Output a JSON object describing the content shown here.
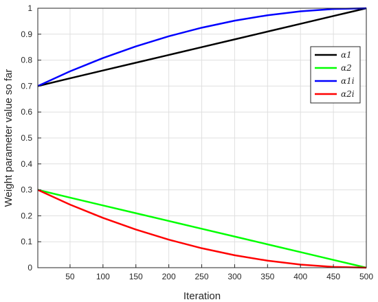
{
  "chart_data": {
    "type": "line",
    "xlabel": "Iteration",
    "ylabel": "Weight parameter value so far",
    "xlim": [
      1,
      500
    ],
    "ylim": [
      0,
      1
    ],
    "x_ticks": [
      50,
      100,
      150,
      200,
      250,
      300,
      350,
      400,
      450,
      500
    ],
    "y_ticks": [
      0,
      0.1,
      0.2,
      0.3,
      0.4,
      0.5,
      0.6,
      0.7,
      0.8,
      0.9,
      1
    ],
    "grid": true,
    "legend_position": "top-right",
    "series": [
      {
        "name": "α1",
        "color": "#000000",
        "x": [
          1,
          50,
          100,
          150,
          200,
          250,
          300,
          350,
          400,
          450,
          500
        ],
        "y": [
          0.7,
          0.73,
          0.76,
          0.79,
          0.82,
          0.85,
          0.88,
          0.91,
          0.94,
          0.97,
          1.0
        ]
      },
      {
        "name": "α2",
        "color": "#00ff00",
        "x": [
          1,
          50,
          100,
          150,
          200,
          250,
          300,
          350,
          400,
          450,
          500
        ],
        "y": [
          0.3,
          0.27,
          0.24,
          0.21,
          0.18,
          0.15,
          0.12,
          0.09,
          0.06,
          0.03,
          0.0
        ]
      },
      {
        "name": "α1i",
        "color": "#0000ff",
        "x": [
          1,
          50,
          100,
          150,
          200,
          250,
          300,
          350,
          400,
          450,
          500
        ],
        "y": [
          0.7,
          0.757,
          0.808,
          0.853,
          0.892,
          0.925,
          0.952,
          0.973,
          0.988,
          0.997,
          1.0
        ]
      },
      {
        "name": "α2i",
        "color": "#ff0000",
        "x": [
          1,
          50,
          100,
          150,
          200,
          250,
          300,
          350,
          400,
          450,
          500
        ],
        "y": [
          0.3,
          0.243,
          0.192,
          0.147,
          0.108,
          0.075,
          0.048,
          0.027,
          0.012,
          0.003,
          0.0
        ]
      }
    ]
  }
}
